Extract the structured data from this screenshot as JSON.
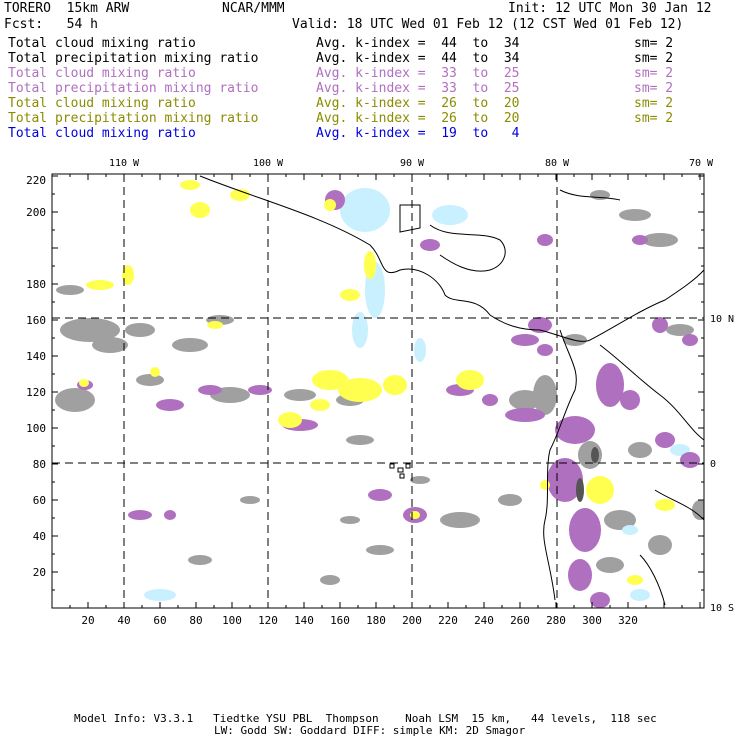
{
  "header": {
    "model": "TORERO  15km ARW",
    "org": "NCAR/MMM",
    "init": "Init: 12 UTC Mon 30 Jan 12",
    "fcst": "Fcst:   54 h",
    "valid": "Valid: 18 UTC Wed 01 Feb 12 (12 CST Wed 01 Feb 12)"
  },
  "legend": [
    {
      "field": "Total cloud mixing ratio",
      "range": "Avg. k-index =  44  to  34",
      "sm": "sm= 2",
      "color": "#000000"
    },
    {
      "field": "Total precipitation mixing ratio",
      "range": "Avg. k-index =  44  to  34",
      "sm": "sm= 2",
      "color": "#000000"
    },
    {
      "field": "Total cloud mixing ratio",
      "range": "Avg. k-index =  33  to  25",
      "sm": "sm= 2",
      "color": "#b070c0"
    },
    {
      "field": "Total precipitation mixing ratio",
      "range": "Avg. k-index =  33  to  25",
      "sm": "sm= 2",
      "color": "#b070c0"
    },
    {
      "field": "Total cloud mixing ratio",
      "range": "Avg. k-index =  26  to  20",
      "sm": "sm= 2",
      "color": "#8c8c00"
    },
    {
      "field": "Total precipitation mixing ratio",
      "range": "Avg. k-index =  26  to  20",
      "sm": "sm= 2",
      "color": "#8c8c00"
    },
    {
      "field": "Total cloud mixing ratio",
      "range": "Avg. k-index =  19  to   4",
      "sm": "",
      "color": "#0000e0"
    }
  ],
  "map": {
    "lon_labels": [
      "110 W",
      "100 W",
      "90 W",
      "80 W",
      "70 W"
    ],
    "lat_labels": [
      "10 N",
      "0",
      "10 S"
    ],
    "x_ticks": [
      "20",
      "40",
      "60",
      "80",
      "100",
      "120",
      "140",
      "160",
      "180",
      "200",
      "220",
      "240",
      "260",
      "280",
      "300",
      "320"
    ],
    "y_ticks": [
      "20",
      "40",
      "60",
      "80",
      "100",
      "120",
      "140",
      "160",
      "180",
      "200",
      "220"
    ],
    "colors": {
      "gray": "#a0a0a0",
      "magenta": "#b070c0",
      "yellow": "#ffff50",
      "cyan": "#c8f0ff",
      "coast": "#000000"
    }
  },
  "footer": {
    "line1": "Model Info: V3.3.1   Tiedtke YSU PBL  Thompson    Noah LSM  15 km,   44 levels,  118 sec",
    "line2": "LW: Godd SW: Goddard DIFF: simple KM: 2D Smagor"
  }
}
